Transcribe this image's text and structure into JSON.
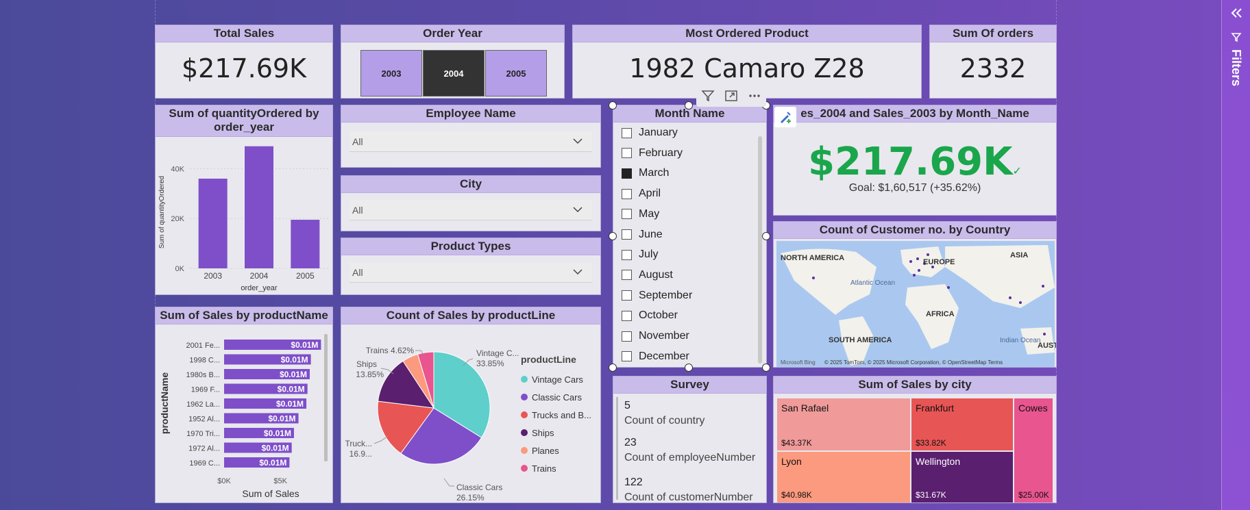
{
  "kpis": {
    "total_sales": {
      "title": "Total Sales",
      "value": "$217.69K"
    },
    "most_ordered": {
      "title": "Most Ordered Product",
      "value": "1982 Camaro Z28"
    },
    "sum_orders": {
      "title": "Sum Of orders",
      "value": "2332"
    }
  },
  "order_year": {
    "title": "Order Year",
    "buttons": [
      {
        "label": "2003",
        "selected": false
      },
      {
        "label": "2004",
        "selected": true
      },
      {
        "label": "2005",
        "selected": false
      }
    ]
  },
  "slicers": {
    "employee": {
      "title": "Employee Name",
      "value": "All"
    },
    "city": {
      "title": "City",
      "value": "All"
    },
    "product_types": {
      "title": "Product Types",
      "value": "All"
    }
  },
  "month_slicer": {
    "title": "Month Name",
    "months": [
      {
        "label": "January",
        "checked": false
      },
      {
        "label": "February",
        "checked": false
      },
      {
        "label": "March",
        "checked": true
      },
      {
        "label": "April",
        "checked": false
      },
      {
        "label": "May",
        "checked": false
      },
      {
        "label": "June",
        "checked": false
      },
      {
        "label": "July",
        "checked": false
      },
      {
        "label": "August",
        "checked": false
      },
      {
        "label": "September",
        "checked": false
      },
      {
        "label": "October",
        "checked": false
      },
      {
        "label": "November",
        "checked": false
      },
      {
        "label": "December",
        "checked": false
      }
    ]
  },
  "sales_kpi": {
    "title": "es_2004 and Sales_2003 by Month_Name",
    "value": "$217.69K",
    "goal": "Goal: $1,60,517 (+35.62%)",
    "accent": "#1aa64b"
  },
  "map": {
    "title": "Count of Customer no. by Country",
    "labels": {
      "north_america": "NORTH AMERICA",
      "europe": "EUROPE",
      "asia": "ASIA",
      "atlantic": "Atlantic Ocean",
      "africa": "AFRICA",
      "south_america": "SOUTH AMERICA",
      "indian": "Indian Ocean",
      "aus": "AUST"
    },
    "attribution": "© 2025 TomTom, © 2025 Microsoft Corporation, © OpenStreetMap  Terms",
    "bing": "Microsoft Bing"
  },
  "survey": {
    "title": "Survey",
    "items": [
      {
        "value": "5",
        "label": "Count of country"
      },
      {
        "value": "23",
        "label": "Count of employeeNumber"
      },
      {
        "value": "122",
        "label": "Count of customerNumber"
      }
    ]
  },
  "city_treemap": {
    "title": "Sum of Sales by city",
    "cells": [
      {
        "name": "San Rafael",
        "value": "$43.37K",
        "color": "#f09a9a"
      },
      {
        "name": "Frankfurt",
        "value": "$33.82K",
        "color": "#e85555"
      },
      {
        "name": "Cowes",
        "value": "$25.00K",
        "color": "#e8558f"
      },
      {
        "name": "Lyon",
        "value": "$40.98K",
        "color": "#fb9a7e"
      },
      {
        "name": "Wellington",
        "value": "$31.67K",
        "color": "#5a1f6e"
      }
    ]
  },
  "charts": {
    "qty_by_year": {
      "title": "Sum of quantityOrdered by order_year",
      "xlabel": "order_year",
      "ylabel": "Sum of quantityOrdered",
      "yticks": [
        "0K",
        "20K",
        "40K"
      ],
      "color": "#7e4fc9"
    },
    "sales_by_product": {
      "title": "Sum of Sales by productName",
      "xlabel": "Sum of Sales",
      "ylabel": "productName",
      "xticks": [
        "$0K",
        "$5K"
      ],
      "color": "#7e4fc9"
    },
    "sales_by_line": {
      "title": "Count of Sales by productLine",
      "legend_title": "productLine",
      "labels": {
        "vintage": "Vintage C...",
        "vintage_pct": "33.85%",
        "classic": "Classic Cars",
        "classic_pct": "26.15%",
        "trucks": "Truck...",
        "trucks_pct": "16.9...",
        "ships": "Ships",
        "ships_pct": "13.85%",
        "trains": "Trains 4.62%"
      }
    }
  },
  "filters_label": "Filters",
  "chart_data": [
    {
      "type": "bar",
      "title": "Sum of quantityOrdered by order_year",
      "xlabel": "order_year",
      "ylabel": "Sum of quantityOrdered",
      "categories": [
        "2003",
        "2004",
        "2005"
      ],
      "values": [
        36000,
        49000,
        19500
      ],
      "ylim": [
        0,
        50000
      ],
      "grid": true
    },
    {
      "type": "bar",
      "orientation": "horizontal",
      "title": "Sum of Sales by productName",
      "xlabel": "Sum of Sales",
      "ylabel": "productName",
      "categories": [
        "2001 Fe...",
        "1998 C...",
        "1980s B...",
        "1969 F...",
        "1962 La...",
        "1952 Al...",
        "1970 Tri...",
        "1972 Al...",
        "1969 C..."
      ],
      "values": [
        8.6,
        7.7,
        7.6,
        7.4,
        7.3,
        6.6,
        6.2,
        6.0,
        5.8
      ],
      "value_labels": [
        "$0.01M",
        "$0.01M",
        "$0.01M",
        "$0.01M",
        "$0.01M",
        "$0.01M",
        "$0.01M",
        "$0.01M",
        "$0.01M"
      ],
      "xlim": [
        0,
        9
      ]
    },
    {
      "type": "pie",
      "title": "Count of Sales by productLine",
      "legend_title": "productLine",
      "legend_position": "right",
      "slices": [
        {
          "label": "Vintage Cars",
          "value": 33.85,
          "color": "#5ecfca"
        },
        {
          "label": "Classic Cars",
          "value": 26.15,
          "color": "#7e4fc9"
        },
        {
          "label": "Trucks and B...",
          "value": 16.92,
          "color": "#e85555"
        },
        {
          "label": "Ships",
          "value": 13.85,
          "color": "#5a1f6e"
        },
        {
          "label": "Planes",
          "value": 4.61,
          "color": "#fb9a7e"
        },
        {
          "label": "Trains",
          "value": 4.62,
          "color": "#e8558f"
        }
      ]
    }
  ]
}
